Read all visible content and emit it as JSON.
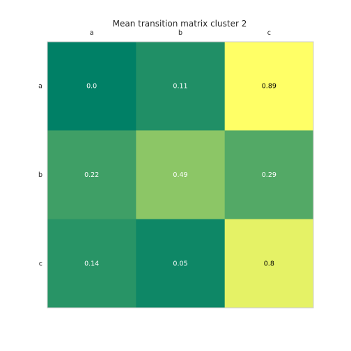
{
  "chart_data": {
    "type": "heatmap",
    "title": "Mean transition matrix cluster 2",
    "x_categories": [
      "a",
      "b",
      "c"
    ],
    "y_categories": [
      "a",
      "b",
      "c"
    ],
    "values": [
      [
        0.0,
        0.11,
        0.89
      ],
      [
        0.22,
        0.49,
        0.29
      ],
      [
        0.14,
        0.05,
        0.8
      ]
    ],
    "value_labels": [
      [
        "0.0",
        "0.11",
        "0.89"
      ],
      [
        "0.22",
        "0.49",
        "0.29"
      ],
      [
        "0.14",
        "0.05",
        "0.8"
      ]
    ],
    "colormap": "summer",
    "vmin": 0.0,
    "vmax": 0.89,
    "x_tick_position": "top",
    "grid": false,
    "colors": {
      "low": "#008066",
      "high": "#ffff66",
      "frame": "#cccccc",
      "text_dark": "#000000",
      "text_light": "#ffffff"
    }
  }
}
